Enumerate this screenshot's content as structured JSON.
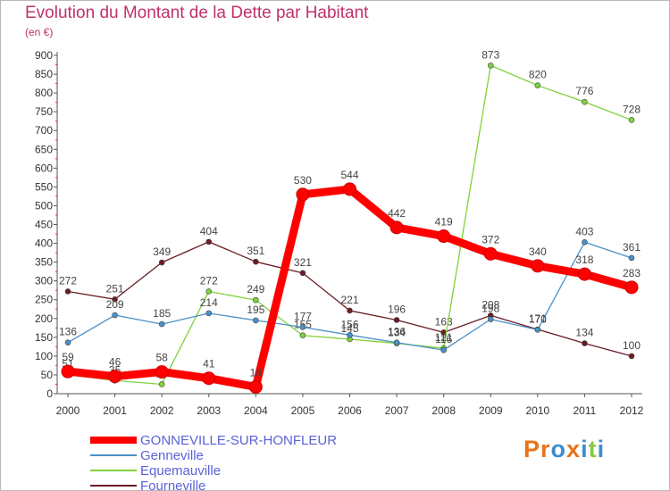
{
  "page": {
    "title": "Evolution du Montant de la Dette par Habitant",
    "subtitle": "(en €)",
    "logo_text": "Proxiti",
    "logo_letters": [
      {
        "char": "P",
        "color": "#e8731a"
      },
      {
        "char": "r",
        "color": "#e8731a"
      },
      {
        "char": "o",
        "color": "#3a8fd1"
      },
      {
        "char": "x",
        "color": "#e8731a"
      },
      {
        "char": "i",
        "color": "#3a8fd1"
      },
      {
        "char": "t",
        "color": "#8dc63f"
      },
      {
        "char": "i",
        "color": "#3a8fd1"
      }
    ]
  },
  "chart_data": {
    "type": "line",
    "x": [
      "2000",
      "2001",
      "2002",
      "2003",
      "2004",
      "2005",
      "2006",
      "2007",
      "2008",
      "2009",
      "2010",
      "2011",
      "2012"
    ],
    "ylim": [
      0,
      900
    ],
    "yticks": [
      0,
      50,
      100,
      150,
      200,
      250,
      300,
      350,
      400,
      450,
      500,
      550,
      600,
      650,
      700,
      750,
      800,
      850,
      900
    ],
    "grid": false,
    "legend_position": "bottom-left",
    "series": [
      {
        "name": "Fourneville",
        "color": "#6b1c24",
        "values": [
          272,
          251,
          349,
          404,
          351,
          321,
          221,
          196,
          163,
          208,
          171,
          134,
          100
        ]
      },
      {
        "name": "Equemauville",
        "color": "#7fd13b",
        "values": [
          51,
          35,
          25,
          272,
          249,
          155,
          145,
          134,
          121,
          873,
          820,
          776,
          728
        ]
      },
      {
        "name": "Genneville",
        "color": "#4a90c8",
        "values": [
          136,
          209,
          185,
          214,
          195,
          177,
          156,
          136,
          116,
          198,
          170,
          403,
          361
        ]
      },
      {
        "name": "GONNEVILLE-SUR-HONFLEUR",
        "color": "#ff0000",
        "values": [
          59,
          46,
          58,
          41,
          18,
          530,
          544,
          442,
          419,
          372,
          340,
          318,
          283
        ]
      }
    ],
    "legend_order": [
      "GONNEVILLE-SUR-HONFLEUR",
      "Genneville",
      "Equemauville",
      "Fourneville"
    ]
  }
}
